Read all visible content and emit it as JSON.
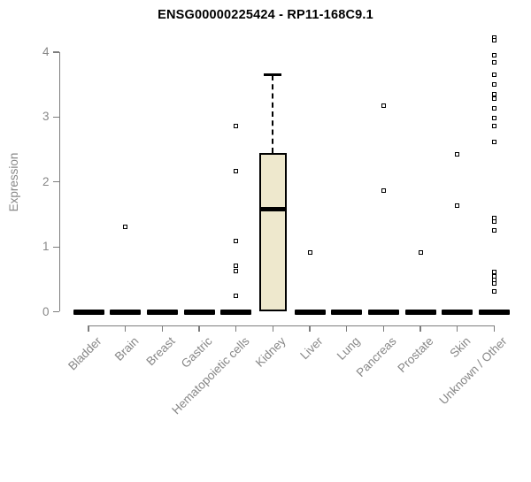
{
  "page": {
    "background": "#ffffff"
  },
  "chart_data": {
    "type": "boxplot",
    "title": "ENSG00000225424 - RP11-168C9.1",
    "xlabel": "",
    "ylabel": "Expression",
    "ylim": [
      0,
      4
    ],
    "yticks": [
      0,
      1,
      2,
      3,
      4
    ],
    "grid": false,
    "legend": false,
    "categories": [
      "Bladder",
      "Brain",
      "Breast",
      "Gastric",
      "Hematopoietic cells",
      "Kidney",
      "Liver",
      "Lung",
      "Pancreas",
      "Prostate",
      "Skin",
      "Unknown / Other"
    ],
    "boxes": [
      {
        "category": "Bladder",
        "whisker_low": 0,
        "q1": 0,
        "median": 0,
        "q3": 0,
        "whisker_high": 0
      },
      {
        "category": "Brain",
        "whisker_low": 0,
        "q1": 0,
        "median": 0,
        "q3": 0,
        "whisker_high": 0
      },
      {
        "category": "Breast",
        "whisker_low": 0,
        "q1": 0,
        "median": 0,
        "q3": 0,
        "whisker_high": 0
      },
      {
        "category": "Gastric",
        "whisker_low": 0,
        "q1": 0,
        "median": 0,
        "q3": 0,
        "whisker_high": 0
      },
      {
        "category": "Hematopoietic cells",
        "whisker_low": 0,
        "q1": 0,
        "median": 0,
        "q3": 0,
        "whisker_high": 0
      },
      {
        "category": "Kidney",
        "whisker_low": 0,
        "q1": 0,
        "median": 1.58,
        "q3": 2.45,
        "whisker_high": 3.65
      },
      {
        "category": "Liver",
        "whisker_low": 0,
        "q1": 0,
        "median": 0,
        "q3": 0,
        "whisker_high": 0
      },
      {
        "category": "Lung",
        "whisker_low": 0,
        "q1": 0,
        "median": 0,
        "q3": 0,
        "whisker_high": 0
      },
      {
        "category": "Pancreas",
        "whisker_low": 0,
        "q1": 0,
        "median": 0,
        "q3": 0,
        "whisker_high": 0
      },
      {
        "category": "Prostate",
        "whisker_low": 0,
        "q1": 0,
        "median": 0,
        "q3": 0,
        "whisker_high": 0
      },
      {
        "category": "Skin",
        "whisker_low": 0,
        "q1": 0,
        "median": 0,
        "q3": 0,
        "whisker_high": 0
      },
      {
        "category": "Unknown / Other",
        "whisker_low": 0,
        "q1": 0,
        "median": 0,
        "q3": 0,
        "whisker_high": 0
      }
    ],
    "outliers": [
      {
        "category": "Brain",
        "values": [
          1.31
        ]
      },
      {
        "category": "Hematopoietic cells",
        "values": [
          2.86,
          2.17,
          1.09,
          0.71,
          0.63,
          0.24
        ]
      },
      {
        "category": "Liver",
        "values": [
          0.91
        ]
      },
      {
        "category": "Pancreas",
        "values": [
          3.18,
          1.87
        ]
      },
      {
        "category": "Prostate",
        "values": [
          0.91
        ]
      },
      {
        "category": "Skin",
        "values": [
          2.43,
          1.63
        ]
      },
      {
        "category": "Unknown / Other",
        "values": [
          4.22,
          4.18,
          3.95,
          3.85,
          3.66,
          3.5,
          3.36,
          3.29,
          3.13,
          2.99,
          2.86,
          2.62,
          1.44,
          1.39,
          1.25,
          0.61,
          0.54,
          0.49,
          0.44,
          0.31
        ]
      }
    ],
    "colors": {
      "box_fill": "#EEE8CD",
      "box_border": "#000000",
      "median": "#000000",
      "point": "#000000",
      "axis": "#7d7d7d",
      "tick_label": "#878787",
      "title": "#000000"
    }
  }
}
